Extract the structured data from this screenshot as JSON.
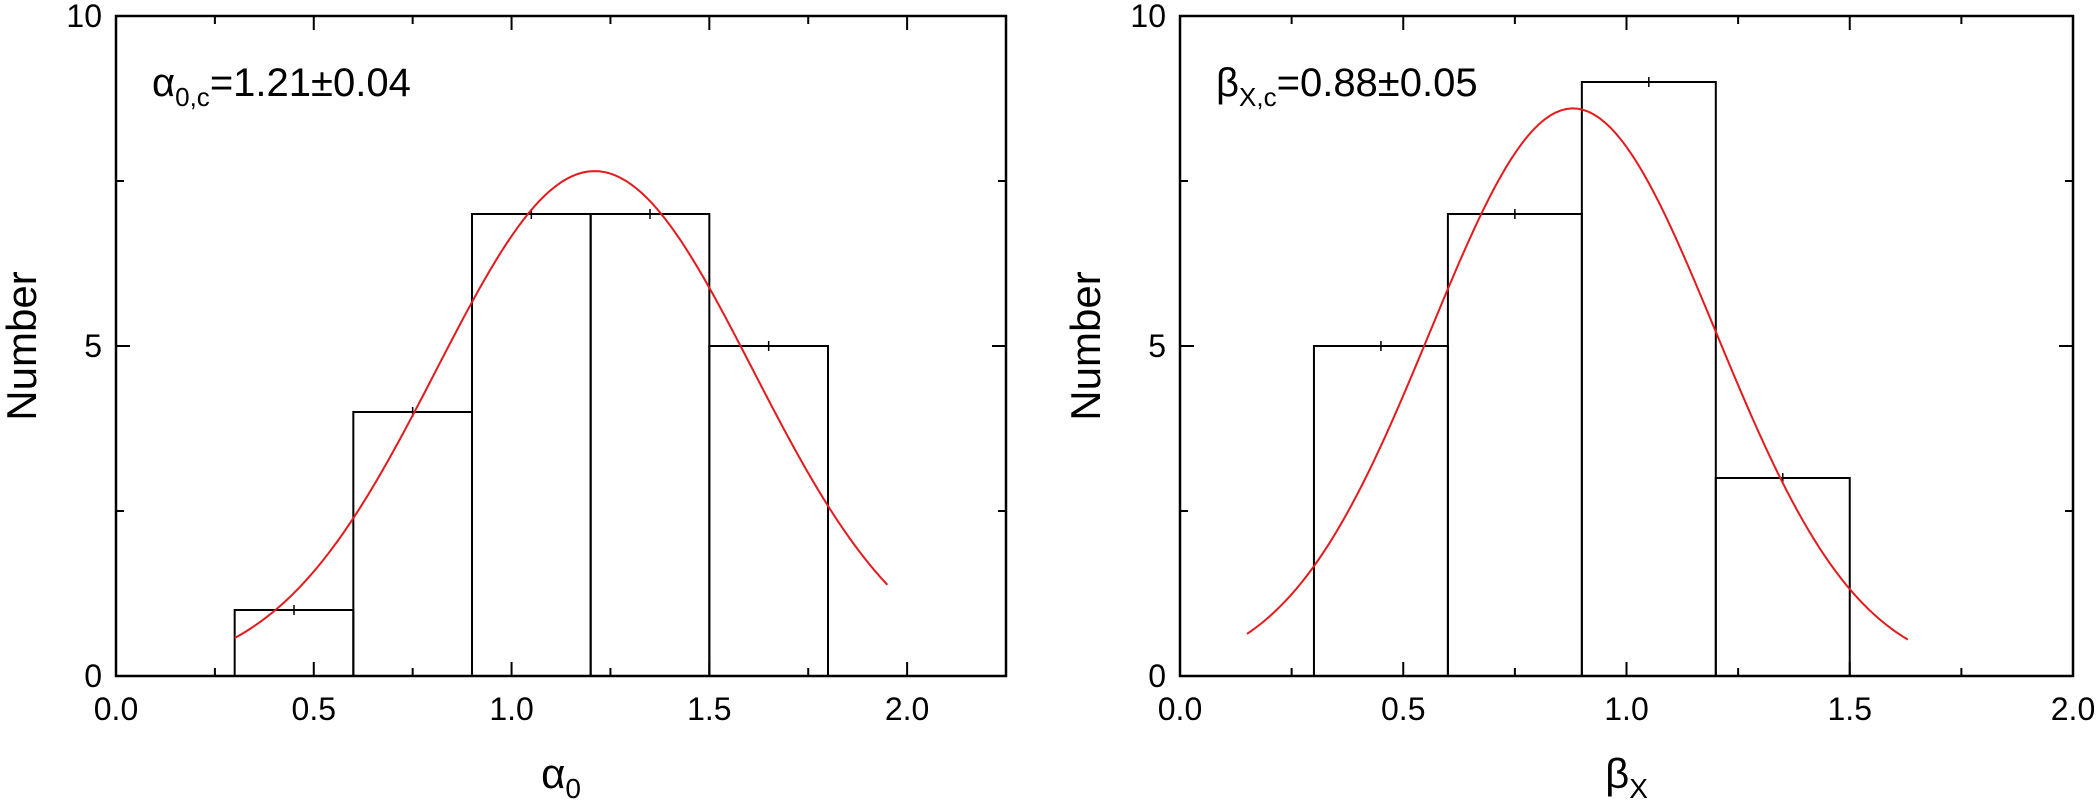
{
  "chart_data": [
    {
      "type": "histogram",
      "ylabel": "Number",
      "xlabel_symbol": "α",
      "xlabel_sub": "0",
      "xlim": [
        0.0,
        2.25
      ],
      "ylim": [
        0,
        10
      ],
      "xticks": [
        "0.0",
        "0.5",
        "1.0",
        "1.5",
        "2.0"
      ],
      "xtick_values": [
        0.0,
        0.5,
        1.0,
        1.5,
        2.0
      ],
      "yticks": [
        "0",
        "5",
        "10"
      ],
      "ytick_values": [
        0,
        5,
        10
      ],
      "bins": [
        {
          "x0": 0.3,
          "x1": 0.6,
          "count": 1
        },
        {
          "x0": 0.6,
          "x1": 0.9,
          "count": 4
        },
        {
          "x0": 0.9,
          "x1": 1.2,
          "count": 7
        },
        {
          "x0": 1.2,
          "x1": 1.5,
          "count": 7
        },
        {
          "x0": 1.5,
          "x1": 1.8,
          "count": 5
        }
      ],
      "fit": {
        "center": 1.21,
        "amplitude": 7.65,
        "sigma": 0.4,
        "x_range": [
          0.3,
          1.95
        ],
        "color": "#e41a1c"
      },
      "annotation": {
        "symbol": "α",
        "sub": "0,c",
        "value": "=1.21±0.04"
      },
      "grid": false
    },
    {
      "type": "histogram",
      "ylabel": "Number",
      "xlabel_symbol": "β",
      "xlabel_sub": "X",
      "xlim": [
        0.0,
        2.0
      ],
      "ylim": [
        0,
        10
      ],
      "xticks": [
        "0.0",
        "0.5",
        "1.0",
        "1.5",
        "2.0"
      ],
      "xtick_values": [
        0.0,
        0.5,
        1.0,
        1.5,
        2.0
      ],
      "yticks": [
        "0",
        "5",
        "10"
      ],
      "ytick_values": [
        0,
        5,
        10
      ],
      "bins": [
        {
          "x0": 0.3,
          "x1": 0.6,
          "count": 5
        },
        {
          "x0": 0.6,
          "x1": 0.9,
          "count": 7
        },
        {
          "x0": 0.9,
          "x1": 1.2,
          "count": 9
        },
        {
          "x0": 1.2,
          "x1": 1.5,
          "count": 3
        }
      ],
      "fit": {
        "center": 0.88,
        "amplitude": 8.6,
        "sigma": 0.32,
        "x_range": [
          0.15,
          1.63
        ],
        "color": "#e41a1c"
      },
      "annotation": {
        "symbol": "β",
        "sub": "X,c",
        "value": "=0.88±0.05"
      },
      "grid": false
    }
  ]
}
